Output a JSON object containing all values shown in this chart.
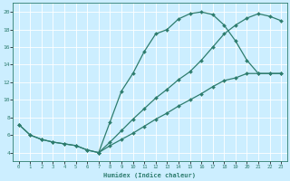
{
  "title": "",
  "xlabel": "Humidex (Indice chaleur)",
  "bg_color": "#cceeff",
  "line_color": "#2e7d6e",
  "grid_color": "#ffffff",
  "xlim": [
    -0.5,
    23.5
  ],
  "ylim": [
    3.0,
    21.0
  ],
  "xticks": [
    0,
    1,
    2,
    3,
    4,
    5,
    6,
    7,
    8,
    9,
    10,
    11,
    12,
    13,
    14,
    15,
    16,
    17,
    18,
    19,
    20,
    21,
    22,
    23
  ],
  "yticks": [
    4,
    6,
    8,
    10,
    12,
    14,
    16,
    18,
    20
  ],
  "line1_x": [
    0,
    1,
    2,
    3,
    4,
    5,
    6,
    7,
    8,
    9,
    10,
    11,
    12,
    13,
    14,
    15,
    16,
    17,
    18,
    19,
    20,
    21,
    22,
    23
  ],
  "line1_y": [
    7.2,
    6.0,
    5.5,
    5.2,
    5.0,
    4.8,
    4.3,
    4.0,
    7.5,
    11.0,
    13.0,
    15.5,
    17.5,
    18.0,
    19.2,
    19.8,
    20.0,
    19.7,
    18.5,
    16.7,
    14.5,
    13.0,
    13.0,
    13.0
  ],
  "line2_x": [
    7,
    8,
    9,
    10,
    11,
    12,
    13,
    14,
    15,
    16,
    17,
    18,
    19,
    20,
    21,
    22,
    23
  ],
  "line2_y": [
    4.0,
    4.8,
    5.5,
    6.2,
    7.0,
    7.8,
    8.5,
    9.3,
    10.0,
    10.7,
    11.5,
    12.2,
    12.5,
    13.0,
    13.0,
    13.0,
    13.0
  ],
  "line3_x": [
    0,
    1,
    2,
    3,
    4,
    5,
    6,
    7,
    8,
    9,
    10,
    11,
    12,
    13,
    14,
    15,
    16,
    17,
    18,
    19,
    20,
    21,
    22,
    23
  ],
  "line3_y": [
    7.2,
    6.0,
    5.5,
    5.2,
    5.0,
    4.8,
    4.3,
    4.0,
    5.2,
    6.5,
    7.8,
    9.0,
    10.2,
    11.2,
    12.3,
    13.2,
    14.5,
    16.0,
    17.5,
    18.5,
    19.3,
    19.8,
    19.5,
    19.0
  ]
}
